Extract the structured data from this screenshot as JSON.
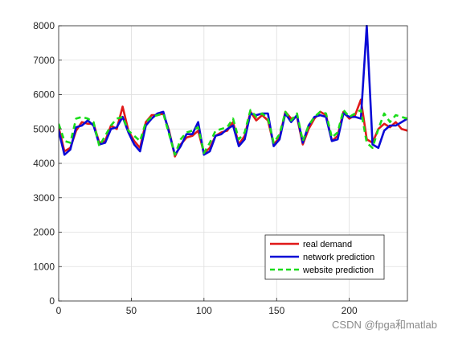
{
  "chart_data": {
    "type": "line",
    "xlim": [
      0,
      240
    ],
    "ylim": [
      0,
      8000
    ],
    "xticks": [
      0,
      50,
      100,
      150,
      200
    ],
    "yticks": [
      0,
      1000,
      2000,
      3000,
      4000,
      5000,
      6000,
      7000,
      8000
    ],
    "grid": true,
    "legend_position": "bottom-right",
    "x": [
      0,
      4,
      8,
      12,
      16,
      20,
      24,
      28,
      32,
      36,
      40,
      44,
      48,
      52,
      56,
      60,
      64,
      68,
      72,
      76,
      80,
      84,
      88,
      92,
      96,
      100,
      104,
      108,
      112,
      116,
      120,
      124,
      128,
      132,
      136,
      140,
      144,
      148,
      152,
      156,
      160,
      164,
      168,
      172,
      176,
      180,
      184,
      188,
      192,
      196,
      200,
      204,
      208,
      212,
      216,
      220,
      224,
      228,
      232,
      236,
      240
    ],
    "series": [
      {
        "name": "real demand",
        "color": "#e01919",
        "dash": "solid",
        "values": [
          5050,
          4350,
          4450,
          4950,
          5200,
          5150,
          5150,
          4600,
          4650,
          5100,
          5000,
          5650,
          4950,
          4650,
          4450,
          5200,
          5400,
          5400,
          5450,
          4950,
          4200,
          4550,
          4750,
          4800,
          4950,
          4300,
          4450,
          4800,
          4900,
          4950,
          5200,
          4550,
          4800,
          5500,
          5250,
          5400,
          5250,
          4550,
          4750,
          5500,
          5300,
          5350,
          4550,
          5000,
          5300,
          5500,
          5400,
          4650,
          4800,
          5500,
          5300,
          5400,
          5850,
          4700,
          4600,
          5000,
          5150,
          5050,
          5200,
          5000,
          4950
        ]
      },
      {
        "name": "network prediction",
        "color": "#0a0ad6",
        "dash": "solid",
        "values": [
          4950,
          4250,
          4400,
          5050,
          5100,
          5250,
          5100,
          4550,
          4600,
          5000,
          5050,
          5350,
          4900,
          4550,
          4350,
          5100,
          5300,
          5450,
          5500,
          4900,
          4250,
          4500,
          4850,
          4850,
          5200,
          4250,
          4350,
          4800,
          4850,
          5000,
          5100,
          4500,
          4700,
          5450,
          5400,
          5450,
          5450,
          4500,
          4700,
          5450,
          5200,
          5400,
          4600,
          5100,
          5350,
          5400,
          5350,
          4650,
          4700,
          5450,
          5350,
          5350,
          5300,
          8000,
          4550,
          4450,
          4950,
          5100,
          5100,
          5200,
          5300
        ]
      },
      {
        "name": "website prediction",
        "color": "#1adc1a",
        "dash": "dashed",
        "values": [
          5150,
          4650,
          4600,
          5300,
          5350,
          5300,
          5200,
          4500,
          4800,
          5100,
          5300,
          5350,
          4950,
          4800,
          4650,
          5200,
          5350,
          5400,
          5450,
          4850,
          4250,
          4700,
          4900,
          4950,
          5050,
          4300,
          4600,
          4950,
          5000,
          5050,
          5300,
          4700,
          4900,
          5550,
          5350,
          5450,
          5300,
          4600,
          4850,
          5500,
          5250,
          5450,
          4650,
          5100,
          5350,
          5500,
          5450,
          4750,
          4900,
          5550,
          5350,
          5450,
          5550,
          4600,
          4450,
          5000,
          5450,
          5200,
          5400,
          5350,
          5300
        ]
      }
    ]
  },
  "watermark": "CSDN @fpga和matlab"
}
